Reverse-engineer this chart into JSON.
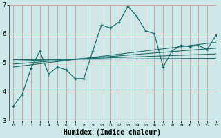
{
  "title": "",
  "xlabel": "Humidex (Indice chaleur)",
  "xlim": [
    -0.5,
    23
  ],
  "ylim": [
    3,
    7
  ],
  "xticks": [
    0,
    1,
    2,
    3,
    4,
    5,
    6,
    7,
    8,
    9,
    10,
    11,
    12,
    13,
    14,
    15,
    16,
    17,
    18,
    19,
    20,
    21,
    22,
    23
  ],
  "yticks": [
    3,
    4,
    5,
    6,
    7
  ],
  "bg_color": "#cce8e8",
  "grid_color": "#d4a0a0",
  "line_color": "#1a6b6b",
  "main_x": [
    0,
    1,
    2,
    3,
    4,
    5,
    6,
    7,
    8,
    9,
    10,
    11,
    12,
    13,
    14,
    15,
    16,
    17,
    18,
    19,
    20,
    21,
    22,
    23
  ],
  "main_y": [
    3.5,
    3.9,
    4.8,
    5.4,
    4.6,
    4.85,
    4.75,
    4.45,
    4.45,
    5.4,
    6.3,
    6.2,
    6.4,
    6.95,
    6.6,
    6.1,
    6.0,
    4.85,
    5.4,
    5.6,
    5.55,
    5.6,
    5.45,
    5.95
  ],
  "trend_lines": [
    {
      "x": [
        0,
        23
      ],
      "y": [
        4.85,
        5.7
      ]
    },
    {
      "x": [
        0,
        23
      ],
      "y": [
        4.95,
        5.5
      ]
    },
    {
      "x": [
        0,
        23
      ],
      "y": [
        5.05,
        5.3
      ]
    },
    {
      "x": [
        0,
        23
      ],
      "y": [
        5.1,
        5.15
      ]
    }
  ]
}
